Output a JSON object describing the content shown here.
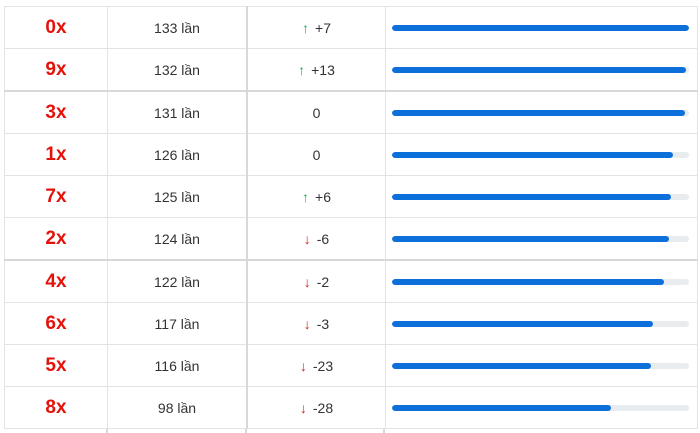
{
  "rows": [
    {
      "number": "0x",
      "count": "133 lần",
      "direction": "up",
      "change": "+7",
      "bar_fraction": 1.0
    },
    {
      "number": "9x",
      "count": "132 lần",
      "direction": "up",
      "change": "+13",
      "bar_fraction": 0.99
    },
    {
      "number": "3x",
      "count": "131 lần",
      "direction": "none",
      "change": "0",
      "bar_fraction": 0.985
    },
    {
      "number": "1x",
      "count": "126 lần",
      "direction": "none",
      "change": "0",
      "bar_fraction": 0.947
    },
    {
      "number": "7x",
      "count": "125 lần",
      "direction": "up",
      "change": "+6",
      "bar_fraction": 0.94
    },
    {
      "number": "2x",
      "count": "124 lần",
      "direction": "down",
      "change": "-6",
      "bar_fraction": 0.932
    },
    {
      "number": "4x",
      "count": "122 lần",
      "direction": "down",
      "change": "-2",
      "bar_fraction": 0.917
    },
    {
      "number": "6x",
      "count": "117 lần",
      "direction": "down",
      "change": "-3",
      "bar_fraction": 0.88
    },
    {
      "number": "5x",
      "count": "116 lần",
      "direction": "down",
      "change": "-23",
      "bar_fraction": 0.872
    },
    {
      "number": "8x",
      "count": "98 lần",
      "direction": "down",
      "change": "-28",
      "bar_fraction": 0.737
    }
  ],
  "icons": {
    "up": "arrow-up-icon",
    "down": "arrow-down-icon"
  },
  "colors": {
    "number": "#e3120b",
    "up": "#1fae51",
    "down": "#d6201a",
    "bar": "#0d6fd9",
    "track": "#e9ecef"
  }
}
